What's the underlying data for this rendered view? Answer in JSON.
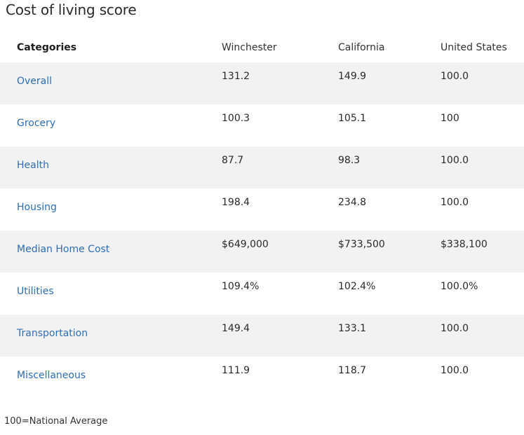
{
  "title": "Cost of living score",
  "table": {
    "headers": [
      "Categories",
      "Winchester",
      "California",
      "United States"
    ],
    "rows": [
      {
        "category": "Overall",
        "winchester": "131.2",
        "california": "149.9",
        "us": "100.0"
      },
      {
        "category": "Grocery",
        "winchester": "100.3",
        "california": "105.1",
        "us": "100"
      },
      {
        "category": "Health",
        "winchester": "87.7",
        "california": "98.3",
        "us": "100.0"
      },
      {
        "category": "Housing",
        "winchester": "198.4",
        "california": "234.8",
        "us": "100.0"
      },
      {
        "category": "Median Home Cost",
        "winchester": "$649,000",
        "california": "$733,500",
        "us": "$338,100"
      },
      {
        "category": "Utilities",
        "winchester": "109.4%",
        "california": "102.4%",
        "us": "100.0%"
      },
      {
        "category": "Transportation",
        "winchester": "149.4",
        "california": "133.1",
        "us": "100.0"
      },
      {
        "category": "Miscellaneous",
        "winchester": "111.9",
        "california": "118.7",
        "us": "100.0"
      }
    ]
  },
  "footnote": "100=National Average",
  "colors": {
    "link": "#2f6db5",
    "stripe": "#f2f2f2"
  }
}
